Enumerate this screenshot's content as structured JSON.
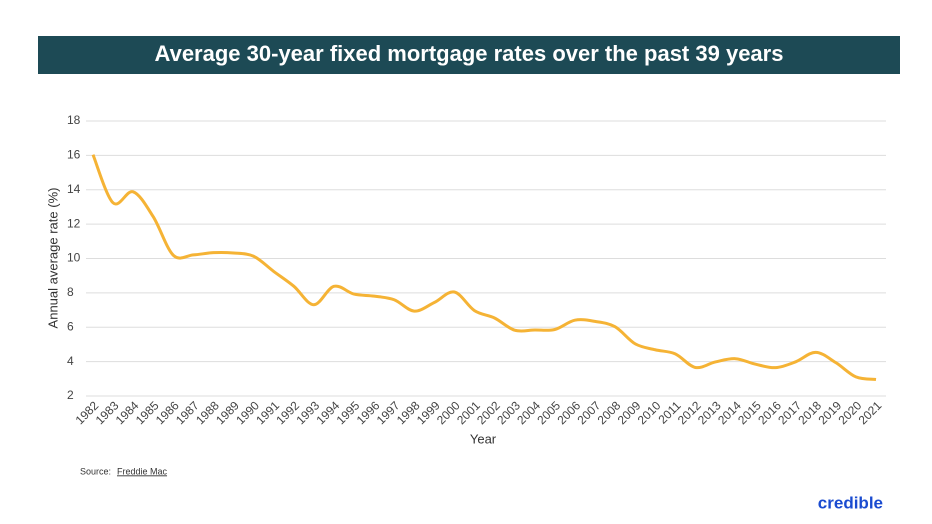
{
  "chart_data": {
    "type": "line",
    "title": "Average 30-year fixed mortgage rates over the past 39 years",
    "xlabel": "Year",
    "ylabel": "Annual average rate (%)",
    "categories": [
      "1982",
      "1983",
      "1984",
      "1985",
      "1986",
      "1987",
      "1988",
      "1989",
      "1990",
      "1991",
      "1992",
      "1993",
      "1994",
      "1995",
      "1996",
      "1997",
      "1998",
      "1999",
      "2000",
      "2001",
      "2002",
      "2003",
      "2004",
      "2005",
      "2006",
      "2007",
      "2008",
      "2009",
      "2010",
      "2011",
      "2012",
      "2013",
      "2014",
      "2015",
      "2016",
      "2017",
      "2018",
      "2019",
      "2020",
      "2021"
    ],
    "values": [
      16.04,
      13.24,
      13.88,
      12.43,
      10.19,
      10.21,
      10.34,
      10.32,
      10.13,
      9.25,
      8.39,
      7.31,
      8.38,
      7.93,
      7.81,
      7.6,
      6.94,
      7.44,
      8.05,
      6.97,
      6.54,
      5.83,
      5.84,
      5.87,
      6.41,
      6.34,
      6.03,
      5.04,
      4.69,
      4.45,
      3.66,
      3.98,
      4.17,
      3.85,
      3.65,
      3.99,
      4.54,
      3.94,
      3.11,
      2.96
    ],
    "color": "#f5b335",
    "ylim": [
      2,
      18
    ],
    "yticks": [
      2,
      4,
      6,
      8,
      10,
      12,
      14,
      16,
      18
    ],
    "grid": true
  },
  "source": {
    "prefix": "Source:",
    "link": "Freddie Mac"
  },
  "logo": "credible"
}
